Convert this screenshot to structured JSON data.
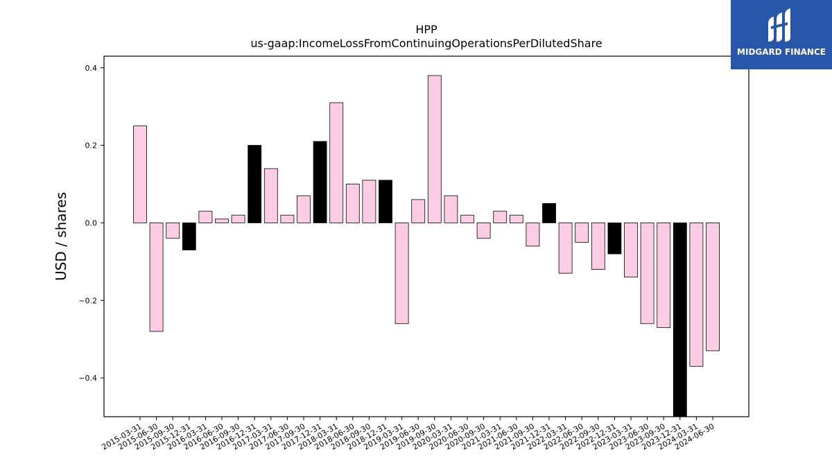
{
  "chart_data": {
    "type": "bar",
    "title": "HPP",
    "subtitle": "us-gaap:IncomeLossFromContinuingOperationsPerDilutedShare",
    "ylabel": "USD / shares",
    "xlabel": "",
    "ylim": [
      -0.5,
      0.43
    ],
    "yticks": [
      -0.4,
      -0.2,
      0.0,
      0.2,
      0.4
    ],
    "ytick_labels": [
      "−0.4",
      "−0.2",
      "0.0",
      "0.2",
      "0.4"
    ],
    "grid": false,
    "categories": [
      "2015-03-31",
      "2015-06-30",
      "2015-09-30",
      "2015-12-31",
      "2016-03-31",
      "2016-06-30",
      "2016-09-30",
      "2016-12-31",
      "2017-03-31",
      "2017-06-30",
      "2017-09-30",
      "2017-12-31",
      "2018-03-31",
      "2018-06-30",
      "2018-09-30",
      "2018-12-31",
      "2019-03-31",
      "2019-06-30",
      "2019-09-30",
      "2020-03-31",
      "2020-06-30",
      "2020-09-30",
      "2021-03-31",
      "2021-06-30",
      "2021-09-30",
      "2021-12-31",
      "2022-03-31",
      "2022-06-30",
      "2022-09-30",
      "2022-12-31",
      "2023-03-31",
      "2023-06-30",
      "2023-09-30",
      "2023-12-31",
      "2024-03-31",
      "2024-06-30"
    ],
    "values": [
      0.25,
      -0.28,
      -0.04,
      -0.07,
      0.03,
      0.01,
      0.02,
      0.2,
      0.14,
      0.02,
      0.07,
      0.21,
      0.31,
      0.1,
      0.11,
      0.11,
      -0.26,
      0.06,
      0.38,
      0.07,
      0.02,
      -0.04,
      0.03,
      0.02,
      -0.06,
      0.05,
      -0.13,
      -0.05,
      -0.12,
      -0.08,
      -0.14,
      -0.26,
      -0.27,
      -0.5,
      -0.37,
      -0.33
    ],
    "highlight": [
      false,
      false,
      false,
      true,
      false,
      false,
      false,
      true,
      false,
      false,
      false,
      true,
      false,
      false,
      false,
      true,
      false,
      false,
      false,
      false,
      false,
      false,
      false,
      false,
      false,
      true,
      false,
      false,
      false,
      true,
      false,
      false,
      false,
      true,
      false,
      false
    ],
    "colors": {
      "normal": "#fbcce3",
      "highlight": "#000000",
      "edge": "#000000"
    }
  },
  "logo": {
    "text": "MIDGARD FINANCE",
    "background": "#2856a8"
  }
}
